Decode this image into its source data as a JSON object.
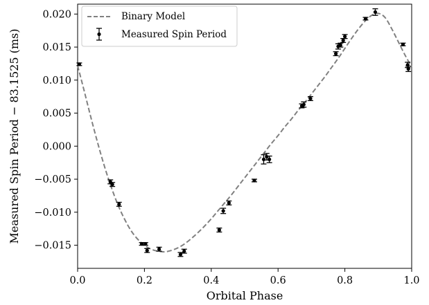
{
  "chart_data": {
    "type": "scatter",
    "title": "",
    "xlabel": "Orbital Phase",
    "ylabel": "Measured Spin Period − 83.1525 (ms)",
    "xlim": [
      0.0,
      1.0
    ],
    "ylim": [
      -0.0185,
      0.0215
    ],
    "x_ticks": [
      0.0,
      0.2,
      0.4,
      0.6,
      0.8,
      1.0
    ],
    "x_tick_labels": [
      "0.0",
      "0.2",
      "0.4",
      "0.6",
      "0.8",
      "1.0"
    ],
    "y_ticks": [
      -0.015,
      -0.01,
      -0.005,
      0.0,
      0.005,
      0.01,
      0.015,
      0.02
    ],
    "y_tick_labels": [
      "−0.015",
      "−0.010",
      "−0.005",
      "0.000",
      "0.005",
      "0.010",
      "0.015",
      "0.020"
    ],
    "grid": false,
    "legend": {
      "placement": "top-left",
      "entries": [
        "Binary Model",
        "Measured Spin Period"
      ]
    },
    "series": [
      {
        "name": "Binary Model",
        "style": "dashed-line",
        "color": "#808080",
        "x": [
          0.0,
          0.02,
          0.04,
          0.06,
          0.08,
          0.1,
          0.12,
          0.14,
          0.16,
          0.18,
          0.2,
          0.22,
          0.24,
          0.26,
          0.28,
          0.3,
          0.32,
          0.34,
          0.36,
          0.38,
          0.4,
          0.42,
          0.44,
          0.46,
          0.48,
          0.5,
          0.52,
          0.54,
          0.56,
          0.58,
          0.6,
          0.62,
          0.64,
          0.66,
          0.68,
          0.7,
          0.72,
          0.74,
          0.76,
          0.78,
          0.8,
          0.82,
          0.84,
          0.86,
          0.88,
          0.9,
          0.92,
          0.94,
          0.96,
          0.98,
          1.0
        ],
        "y": [
          0.0122,
          0.0083,
          0.0043,
          0.0005,
          -0.003,
          -0.0061,
          -0.0088,
          -0.011,
          -0.0128,
          -0.0141,
          -0.015,
          -0.0156,
          -0.0159,
          -0.016,
          -0.0158,
          -0.0154,
          -0.0148,
          -0.014,
          -0.0131,
          -0.0121,
          -0.011,
          -0.0098,
          -0.0086,
          -0.0074,
          -0.0061,
          -0.0048,
          -0.0035,
          -0.0022,
          -0.0009,
          0.0004,
          0.0016,
          0.0029,
          0.0041,
          0.0054,
          0.0066,
          0.0079,
          0.0092,
          0.0105,
          0.0119,
          0.0133,
          0.0148,
          0.0163,
          0.0177,
          0.0189,
          0.0198,
          0.0201,
          0.0195,
          0.0178,
          0.0158,
          0.0138,
          0.012
        ]
      },
      {
        "name": "Measured Spin Period",
        "style": "errorbar-points",
        "color": "#000000",
        "x": [
          0.005,
          0.098,
          0.104,
          0.124,
          0.192,
          0.203,
          0.208,
          0.244,
          0.308,
          0.319,
          0.424,
          0.436,
          0.453,
          0.529,
          0.557,
          0.566,
          0.574,
          0.671,
          0.677,
          0.697,
          0.773,
          0.78,
          0.787,
          0.795,
          0.8,
          0.862,
          0.891,
          0.974,
          0.988,
          0.99
        ],
        "y": [
          0.0124,
          -0.0054,
          -0.0058,
          -0.0088,
          -0.0148,
          -0.0148,
          -0.0158,
          -0.0156,
          -0.0164,
          -0.0159,
          -0.0127,
          -0.0098,
          -0.0086,
          -0.0052,
          -0.002,
          -0.0016,
          -0.002,
          0.0061,
          0.0063,
          0.0072,
          0.014,
          0.0151,
          0.0153,
          0.016,
          0.0166,
          0.0193,
          0.0203,
          0.0154,
          0.0123,
          0.0117
        ],
        "error": [
          0.0002,
          0.0003,
          0.0003,
          0.0003,
          0.0002,
          0.0002,
          0.0003,
          0.0003,
          0.0003,
          0.0003,
          0.0003,
          0.0004,
          0.0003,
          0.0002,
          0.0007,
          0.0005,
          0.0005,
          0.0003,
          0.0004,
          0.0003,
          0.0003,
          0.0004,
          0.0003,
          0.0003,
          0.0003,
          0.0002,
          0.0005,
          0.0002,
          0.0004,
          0.0004
        ]
      }
    ]
  }
}
